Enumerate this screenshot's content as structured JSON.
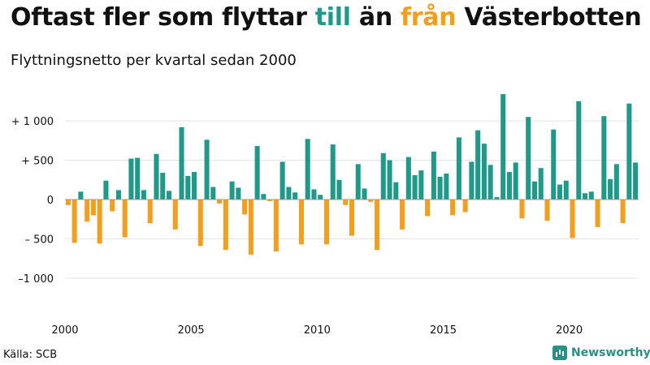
{
  "title": {
    "part1": "Oftast fler som flyttar ",
    "part2": "till",
    "part3": " än ",
    "part4": "från",
    "part5": " Västerbotten"
  },
  "subtitle": "Flyttningsnetto per kvartal sedan 2000",
  "source": "Källa: SCB",
  "brand": {
    "name": "Newsworthy",
    "icon": "bar-chart-logo-icon"
  },
  "colors": {
    "positive": "#1f9a8a",
    "negative": "#f29f1f",
    "grid": "#e3e3e3",
    "zero_line": "#999999"
  },
  "chart_data": {
    "type": "bar",
    "x_start": "2000 Q1",
    "x_ticks": [
      "2000",
      "2005",
      "2010",
      "2015",
      "2020"
    ],
    "y_ticks": [
      {
        "value": 1000,
        "label": "+ 1 000"
      },
      {
        "value": 500,
        "label": "+   500"
      },
      {
        "value": 0,
        "label": "0"
      },
      {
        "value": -500,
        "label": "– 500"
      },
      {
        "value": -1000,
        "label": "–1 000"
      }
    ],
    "ylim": [
      -1300,
      1400
    ],
    "grid": true,
    "values": [
      -70,
      -550,
      100,
      -280,
      -200,
      -560,
      240,
      -150,
      120,
      -480,
      520,
      530,
      120,
      -300,
      580,
      340,
      110,
      -380,
      920,
      300,
      350,
      -590,
      760,
      160,
      -50,
      -640,
      230,
      150,
      -190,
      -700,
      680,
      70,
      -20,
      -660,
      480,
      160,
      90,
      -570,
      770,
      130,
      60,
      -570,
      700,
      250,
      -70,
      -460,
      450,
      140,
      -30,
      -640,
      590,
      500,
      220,
      -380,
      540,
      310,
      370,
      -210,
      610,
      290,
      330,
      -200,
      790,
      -160,
      480,
      880,
      710,
      440,
      30,
      1340,
      350,
      470,
      -240,
      1050,
      230,
      400,
      -270,
      890,
      190,
      240,
      -490,
      1250,
      80,
      100,
      -350,
      1060,
      260,
      450,
      -300,
      1220,
      470
    ]
  }
}
